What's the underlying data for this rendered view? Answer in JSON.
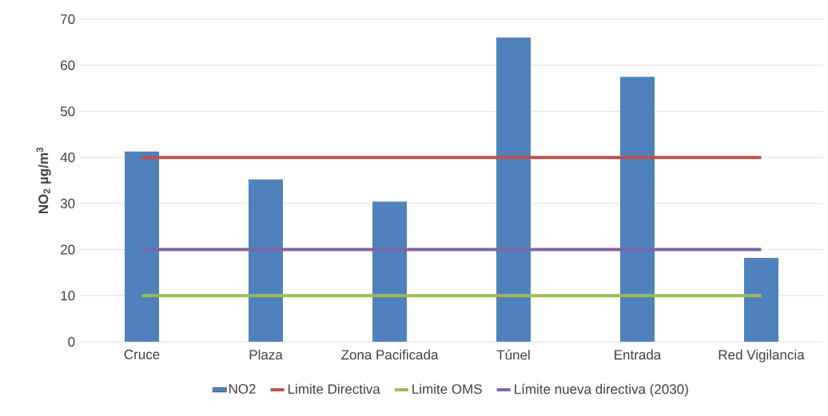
{
  "chart_data": {
    "type": "bar",
    "ylabel": "NO$_{2}$ µg/m$^{3}$",
    "categories": [
      "Cruce",
      "Plaza",
      "Zona Pacificada",
      "Túnel",
      "Entrada",
      "Red Vigilancia"
    ],
    "series": [
      {
        "name": "NO2",
        "color": "#4f81bd",
        "values": [
          41.3,
          35.2,
          30.4,
          66.0,
          57.5,
          18.2
        ]
      },
      {
        "name": "Limite Directiva",
        "type": "line",
        "color": "#c0504d",
        "values": [
          40,
          40,
          40,
          40,
          40,
          40
        ]
      },
      {
        "name": "Limite OMS",
        "type": "line",
        "color": "#9bbb59",
        "values": [
          10,
          10,
          10,
          10,
          10,
          10
        ]
      },
      {
        "name": "Límite nueva directiva (2030)",
        "type": "line",
        "color": "#8064a2",
        "values": [
          20,
          20,
          20,
          20,
          20,
          20
        ]
      }
    ],
    "ylim": [
      0,
      70
    ],
    "yticks": [
      0,
      10,
      20,
      30,
      40,
      50,
      60,
      70
    ],
    "grid": "y",
    "legend": "bottom"
  }
}
